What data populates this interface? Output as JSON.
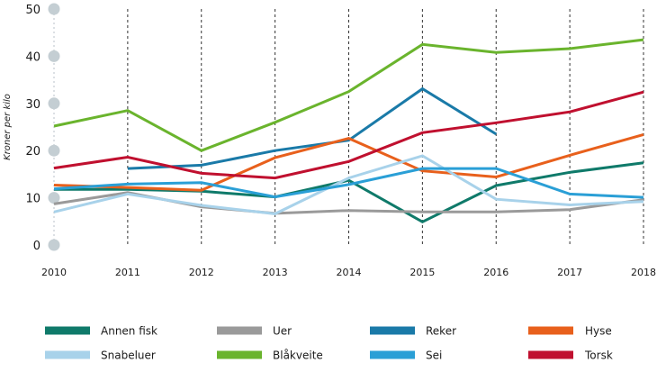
{
  "chart_data": {
    "type": "line",
    "title": "",
    "xlabel": "",
    "ylabel": "Kroner per kilo",
    "x": [
      "2010",
      "2011",
      "2012",
      "2013",
      "2014",
      "2015",
      "2016",
      "2017",
      "2018"
    ],
    "yticks": [
      "0",
      "10",
      "20",
      "30",
      "40",
      "50"
    ],
    "ylim": [
      0,
      50
    ],
    "grid": "vertical dotted",
    "legend_position": "bottom",
    "series": [
      {
        "name": "Annen fisk",
        "color": "#0f7a6a",
        "values": [
          11.8,
          11.8,
          11.4,
          10.2,
          13.7,
          4.9,
          12.6,
          15.4,
          17.4
        ]
      },
      {
        "name": "Uer",
        "color": "#9a9a9a",
        "values": [
          8.7,
          11.1,
          8.1,
          6.7,
          7.3,
          7.0,
          7.0,
          7.5,
          9.6
        ]
      },
      {
        "name": "Reker",
        "color": "#1a7aa8",
        "values": [
          null,
          16.2,
          16.9,
          20.0,
          22.2,
          33.1,
          23.5,
          null,
          null
        ]
      },
      {
        "name": "Hyse",
        "color": "#e8601c",
        "values": [
          12.7,
          12.2,
          11.6,
          18.5,
          22.6,
          15.7,
          14.4,
          19.0,
          23.4
        ]
      },
      {
        "name": "Snabeluer",
        "color": "#a8d2ea",
        "values": [
          7.0,
          10.8,
          8.4,
          6.6,
          14.2,
          18.9,
          9.7,
          8.5,
          9.2
        ]
      },
      {
        "name": "Blåkveite",
        "color": "#6ab42d",
        "values": [
          25.2,
          28.5,
          20.0,
          26.0,
          32.5,
          42.5,
          40.8,
          41.6,
          43.5
        ]
      },
      {
        "name": "Sei",
        "color": "#2a9fd6",
        "values": [
          11.9,
          12.9,
          13.2,
          10.2,
          12.8,
          16.2,
          16.2,
          10.8,
          10.1
        ]
      },
      {
        "name": "Torsk",
        "color": "#c0102f",
        "values": [
          16.3,
          18.6,
          15.2,
          14.2,
          17.7,
          23.8,
          25.9,
          28.2,
          32.4
        ]
      }
    ]
  }
}
